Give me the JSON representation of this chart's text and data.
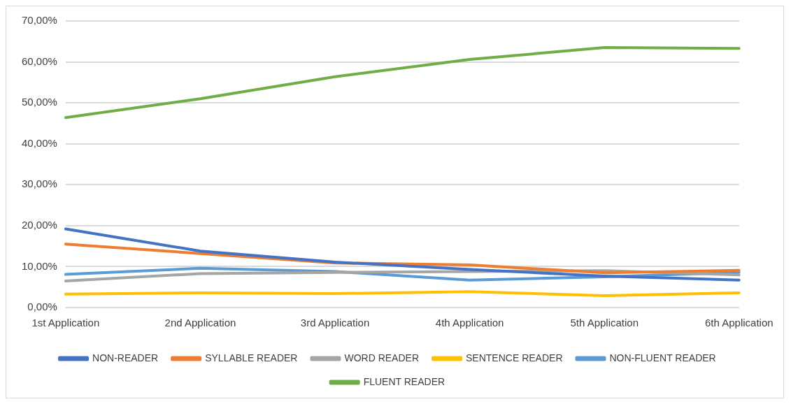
{
  "chart_data": {
    "type": "line",
    "categories": [
      "1st Application",
      "2nd Application",
      "3rd Application",
      "4th Application",
      "5th Application",
      "6th Application"
    ],
    "series": [
      {
        "name": "NON-READER",
        "color": "#4472c4",
        "values": [
          19.2,
          13.8,
          11.1,
          9.3,
          7.7,
          6.7
        ]
      },
      {
        "name": "SYLLABLE READER",
        "color": "#ed7d31",
        "values": [
          15.5,
          13.2,
          10.9,
          10.4,
          8.5,
          9.1
        ]
      },
      {
        "name": "WORD READER",
        "color": "#a5a5a5",
        "values": [
          6.5,
          8.3,
          8.6,
          8.8,
          9.0,
          8.0
        ]
      },
      {
        "name": "SENTENCE READER",
        "color": "#ffc000",
        "values": [
          3.3,
          3.6,
          3.4,
          3.9,
          2.9,
          3.6
        ]
      },
      {
        "name": "NON-FLUENT READER",
        "color": "#5b9bd5",
        "values": [
          8.1,
          9.6,
          8.8,
          6.7,
          7.5,
          8.6
        ]
      },
      {
        "name": "FLUENT READER",
        "color": "#70ad47",
        "values": [
          46.4,
          51.0,
          56.4,
          60.6,
          63.5,
          63.3
        ]
      }
    ],
    "ylim": [
      0,
      70
    ],
    "yticks": [
      {
        "value": 0,
        "label": "0,00%"
      },
      {
        "value": 10,
        "label": "10,00%"
      },
      {
        "value": 20,
        "label": "20,00%"
      },
      {
        "value": 30,
        "label": "30,00%"
      },
      {
        "value": 40,
        "label": "40,00%"
      },
      {
        "value": 50,
        "label": "50,00%"
      },
      {
        "value": 60,
        "label": "60,00%"
      },
      {
        "value": 70,
        "label": "70,00%"
      }
    ],
    "grid": "y",
    "legend": "bottom",
    "marker": "none",
    "line_style": "solid"
  }
}
